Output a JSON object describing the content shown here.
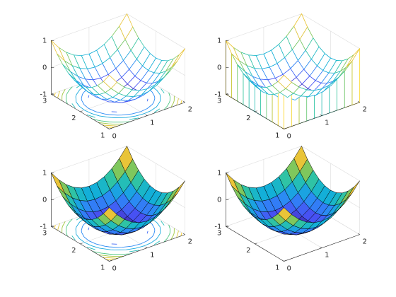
{
  "chart_data": [
    {
      "type": "meshc",
      "colormap": "parula",
      "grid": true,
      "x": [
        0,
        0.2,
        0.4,
        0.6,
        0.8,
        1,
        1.2,
        1.4,
        1.6,
        1.8,
        2
      ],
      "y": [
        1,
        1.2,
        1.4,
        1.6,
        1.8,
        2,
        2.2,
        2.4,
        2.6,
        2.8,
        3
      ],
      "z": [
        [
          1,
          0.64,
          0.36,
          0.16,
          0.04,
          0,
          0.04,
          0.16,
          0.36,
          0.64,
          1
        ],
        [
          0.64,
          0.28,
          0,
          -0.2,
          -0.32,
          -0.36,
          -0.32,
          -0.2,
          0,
          0.28,
          0.64
        ],
        [
          0.36,
          0,
          -0.28,
          -0.48,
          -0.6,
          -0.64,
          -0.6,
          -0.48,
          -0.28,
          0,
          0.36
        ],
        [
          0.16,
          -0.2,
          -0.48,
          -0.68,
          -0.8,
          -0.84,
          -0.8,
          -0.68,
          -0.48,
          -0.2,
          0.16
        ],
        [
          0.04,
          -0.32,
          -0.6,
          -0.8,
          -0.92,
          -0.96,
          -0.92,
          -0.8,
          -0.6,
          -0.32,
          0.04
        ],
        [
          0,
          -0.36,
          -0.64,
          -0.84,
          -0.96,
          -1,
          -0.96,
          -0.84,
          -0.64,
          -0.36,
          0
        ],
        [
          0.04,
          -0.32,
          -0.6,
          -0.8,
          -0.92,
          -0.96,
          -0.92,
          -0.8,
          -0.6,
          -0.32,
          0.04
        ],
        [
          0.16,
          -0.2,
          -0.48,
          -0.68,
          -0.8,
          -0.84,
          -0.8,
          -0.68,
          -0.48,
          -0.2,
          0.16
        ],
        [
          0.36,
          0,
          -0.28,
          -0.48,
          -0.6,
          -0.64,
          -0.6,
          -0.48,
          -0.28,
          0,
          0.36
        ],
        [
          0.64,
          0.28,
          0,
          -0.2,
          -0.32,
          -0.36,
          -0.32,
          -0.2,
          0,
          0.28,
          0.64
        ],
        [
          1,
          0.64,
          0.36,
          0.16,
          0.04,
          0,
          0.04,
          0.16,
          0.36,
          0.64,
          1
        ]
      ],
      "xlim": [
        0,
        2
      ],
      "ylim": [
        1,
        3
      ],
      "zlim": [
        -1,
        1
      ],
      "xticks": [
        0,
        1,
        2
      ],
      "yticks": [
        1,
        2,
        3
      ],
      "zticks": [
        -1,
        0,
        1
      ]
    },
    {
      "type": "meshz",
      "colormap": "parula",
      "grid": true,
      "x": [
        0,
        0.2,
        0.4,
        0.6,
        0.8,
        1,
        1.2,
        1.4,
        1.6,
        1.8,
        2
      ],
      "y": [
        1,
        1.2,
        1.4,
        1.6,
        1.8,
        2,
        2.2,
        2.4,
        2.6,
        2.8,
        3
      ],
      "z": [
        [
          1,
          0.64,
          0.36,
          0.16,
          0.04,
          0,
          0.04,
          0.16,
          0.36,
          0.64,
          1
        ],
        [
          0.64,
          0.28,
          0,
          -0.2,
          -0.32,
          -0.36,
          -0.32,
          -0.2,
          0,
          0.28,
          0.64
        ],
        [
          0.36,
          0,
          -0.28,
          -0.48,
          -0.6,
          -0.64,
          -0.6,
          -0.48,
          -0.28,
          0,
          0.36
        ],
        [
          0.16,
          -0.2,
          -0.48,
          -0.68,
          -0.8,
          -0.84,
          -0.8,
          -0.68,
          -0.48,
          -0.2,
          0.16
        ],
        [
          0.04,
          -0.32,
          -0.6,
          -0.8,
          -0.92,
          -0.96,
          -0.92,
          -0.8,
          -0.6,
          -0.32,
          0.04
        ],
        [
          0,
          -0.36,
          -0.64,
          -0.84,
          -0.96,
          -1,
          -0.96,
          -0.84,
          -0.64,
          -0.36,
          0
        ],
        [
          0.04,
          -0.32,
          -0.6,
          -0.8,
          -0.92,
          -0.96,
          -0.92,
          -0.8,
          -0.6,
          -0.32,
          0.04
        ],
        [
          0.16,
          -0.2,
          -0.48,
          -0.68,
          -0.8,
          -0.84,
          -0.8,
          -0.68,
          -0.48,
          -0.2,
          0.16
        ],
        [
          0.36,
          0,
          -0.28,
          -0.48,
          -0.6,
          -0.64,
          -0.6,
          -0.48,
          -0.28,
          0,
          0.36
        ],
        [
          0.64,
          0.28,
          0,
          -0.2,
          -0.32,
          -0.36,
          -0.32,
          -0.2,
          0,
          0.28,
          0.64
        ],
        [
          1,
          0.64,
          0.36,
          0.16,
          0.04,
          0,
          0.04,
          0.16,
          0.36,
          0.64,
          1
        ]
      ],
      "xlim": [
        0,
        2
      ],
      "ylim": [
        1,
        3
      ],
      "zlim": [
        -1,
        1
      ],
      "xticks": [
        0,
        1,
        2
      ],
      "yticks": [
        1,
        2,
        3
      ],
      "zticks": [
        -1,
        0,
        1
      ]
    },
    {
      "type": "surfc",
      "colormap": "parula",
      "grid": true,
      "x": [
        0,
        0.2,
        0.4,
        0.6,
        0.8,
        1,
        1.2,
        1.4,
        1.6,
        1.8,
        2
      ],
      "y": [
        1,
        1.2,
        1.4,
        1.6,
        1.8,
        2,
        2.2,
        2.4,
        2.6,
        2.8,
        3
      ],
      "z": [
        [
          1,
          0.64,
          0.36,
          0.16,
          0.04,
          0,
          0.04,
          0.16,
          0.36,
          0.64,
          1
        ],
        [
          0.64,
          0.28,
          0,
          -0.2,
          -0.32,
          -0.36,
          -0.32,
          -0.2,
          0,
          0.28,
          0.64
        ],
        [
          0.36,
          0,
          -0.28,
          -0.48,
          -0.6,
          -0.64,
          -0.6,
          -0.48,
          -0.28,
          0,
          0.36
        ],
        [
          0.16,
          -0.2,
          -0.48,
          -0.68,
          -0.8,
          -0.84,
          -0.8,
          -0.68,
          -0.48,
          -0.2,
          0.16
        ],
        [
          0.04,
          -0.32,
          -0.6,
          -0.8,
          -0.92,
          -0.96,
          -0.92,
          -0.8,
          -0.6,
          -0.32,
          0.04
        ],
        [
          0,
          -0.36,
          -0.64,
          -0.84,
          -0.96,
          -1,
          -0.96,
          -0.84,
          -0.64,
          -0.36,
          0
        ],
        [
          0.04,
          -0.32,
          -0.6,
          -0.8,
          -0.92,
          -0.96,
          -0.92,
          -0.8,
          -0.6,
          -0.32,
          0.04
        ],
        [
          0.16,
          -0.2,
          -0.48,
          -0.68,
          -0.8,
          -0.84,
          -0.8,
          -0.68,
          -0.48,
          -0.2,
          0.16
        ],
        [
          0.36,
          0,
          -0.28,
          -0.48,
          -0.6,
          -0.64,
          -0.6,
          -0.48,
          -0.28,
          0,
          0.36
        ],
        [
          0.64,
          0.28,
          0,
          -0.2,
          -0.32,
          -0.36,
          -0.32,
          -0.2,
          0,
          0.28,
          0.64
        ],
        [
          1,
          0.64,
          0.36,
          0.16,
          0.04,
          0,
          0.04,
          0.16,
          0.36,
          0.64,
          1
        ]
      ],
      "xlim": [
        0,
        2
      ],
      "ylim": [
        1,
        3
      ],
      "zlim": [
        -1,
        1
      ],
      "xticks": [
        0,
        1,
        2
      ],
      "yticks": [
        1,
        2,
        3
      ],
      "zticks": [
        -1,
        0,
        1
      ]
    },
    {
      "type": "surf",
      "colormap": "parula",
      "grid": true,
      "x": [
        0,
        0.2,
        0.4,
        0.6,
        0.8,
        1,
        1.2,
        1.4,
        1.6,
        1.8,
        2
      ],
      "y": [
        1,
        1.2,
        1.4,
        1.6,
        1.8,
        2,
        2.2,
        2.4,
        2.6,
        2.8,
        3
      ],
      "z": [
        [
          1,
          0.64,
          0.36,
          0.16,
          0.04,
          0,
          0.04,
          0.16,
          0.36,
          0.64,
          1
        ],
        [
          0.64,
          0.28,
          0,
          -0.2,
          -0.32,
          -0.36,
          -0.32,
          -0.2,
          0,
          0.28,
          0.64
        ],
        [
          0.36,
          0,
          -0.28,
          -0.48,
          -0.6,
          -0.64,
          -0.6,
          -0.48,
          -0.28,
          0,
          0.36
        ],
        [
          0.16,
          -0.2,
          -0.48,
          -0.68,
          -0.8,
          -0.84,
          -0.8,
          -0.68,
          -0.48,
          -0.2,
          0.16
        ],
        [
          0.04,
          -0.32,
          -0.6,
          -0.8,
          -0.92,
          -0.96,
          -0.92,
          -0.8,
          -0.6,
          -0.32,
          0.04
        ],
        [
          0,
          -0.36,
          -0.64,
          -0.84,
          -0.96,
          -1,
          -0.96,
          -0.84,
          -0.64,
          -0.36,
          0
        ],
        [
          0.04,
          -0.32,
          -0.6,
          -0.8,
          -0.92,
          -0.96,
          -0.92,
          -0.8,
          -0.6,
          -0.32,
          0.04
        ],
        [
          0.16,
          -0.2,
          -0.48,
          -0.68,
          -0.8,
          -0.84,
          -0.8,
          -0.68,
          -0.48,
          -0.2,
          0.16
        ],
        [
          0.36,
          0,
          -0.28,
          -0.48,
          -0.6,
          -0.64,
          -0.6,
          -0.48,
          -0.28,
          0,
          0.36
        ],
        [
          0.64,
          0.28,
          0,
          -0.2,
          -0.32,
          -0.36,
          -0.32,
          -0.2,
          0,
          0.28,
          0.64
        ],
        [
          1,
          0.64,
          0.36,
          0.16,
          0.04,
          0,
          0.04,
          0.16,
          0.36,
          0.64,
          1
        ]
      ],
      "xlim": [
        0,
        2
      ],
      "ylim": [
        1,
        3
      ],
      "zlim": [
        -1,
        1
      ],
      "xticks": [
        0,
        1,
        2
      ],
      "yticks": [
        1,
        2,
        3
      ],
      "zticks": [
        -1,
        0,
        1
      ]
    }
  ]
}
